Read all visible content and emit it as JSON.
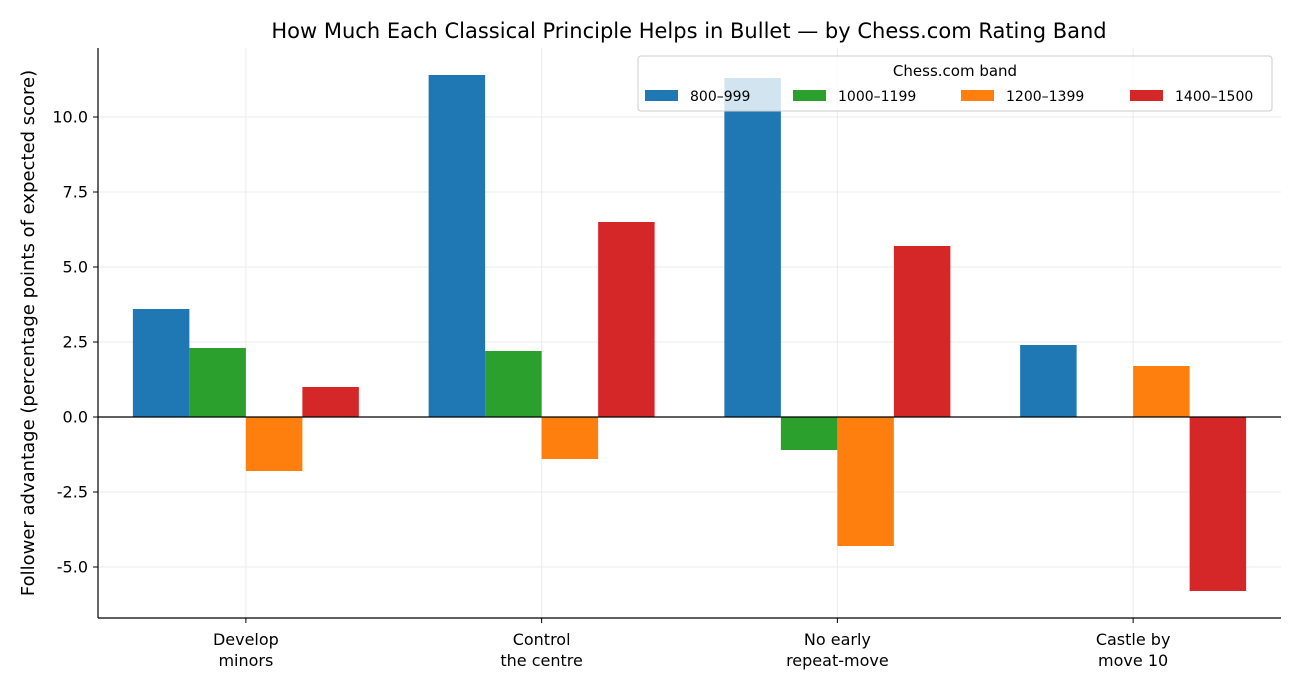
{
  "chart_data": {
    "type": "bar",
    "title": "How Much Each Classical Principle Helps in Bullet — by Chess.com Rating Band",
    "xlabel": "",
    "ylabel": "Follower advantage (percentage points of expected score)",
    "categories": [
      [
        "Develop",
        "minors"
      ],
      [
        "Control",
        "the centre"
      ],
      [
        "No early",
        "repeat-move"
      ],
      [
        "Castle by",
        "move 10"
      ]
    ],
    "series": [
      {
        "name": "800–999",
        "color": "#1f77b4",
        "values": [
          3.6,
          11.4,
          11.3,
          2.4
        ]
      },
      {
        "name": "1000–1199",
        "color": "#2ca02c",
        "values": [
          2.3,
          2.2,
          -1.1,
          0.0
        ]
      },
      {
        "name": "1200–1399",
        "color": "#ff7f0e",
        "values": [
          -1.8,
          -1.4,
          -4.3,
          1.7
        ]
      },
      {
        "name": "1400–1500",
        "color": "#d62728",
        "values": [
          1.0,
          6.5,
          5.7,
          -5.8
        ]
      }
    ],
    "ylim": [
      -6.7,
      12.3
    ],
    "yticks": [
      -5.0,
      -2.5,
      0.0,
      2.5,
      5.0,
      7.5,
      10.0
    ],
    "ytick_labels": [
      "-5.0",
      "-2.5",
      "0.0",
      "2.5",
      "5.0",
      "7.5",
      "10.0"
    ],
    "grid": true,
    "legend": {
      "title": "Chess.com band",
      "placement": "top-right",
      "columns": 4
    }
  }
}
